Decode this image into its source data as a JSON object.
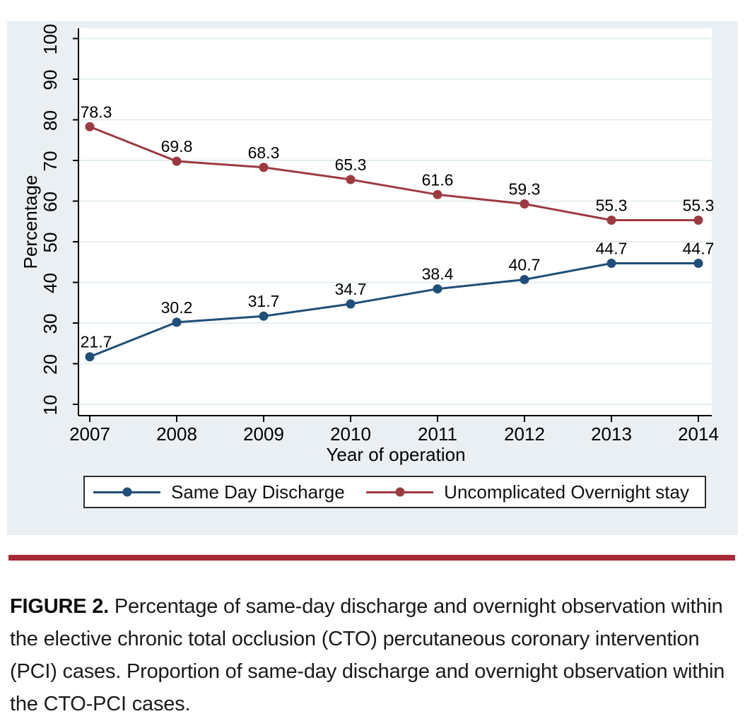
{
  "figure": {
    "caption_label": "FIGURE 2.",
    "caption_text": " Percentage of same-day discharge and overnight observation within the elective chronic total occlusion (CTO) percutaneous coronary intervention (PCI) cases. Proportion of same-day discharge and overnight observation within the CTO-PCI cases.",
    "rule_color": "#a72837"
  },
  "chart_data": {
    "type": "line",
    "x": [
      2007,
      2008,
      2009,
      2010,
      2011,
      2012,
      2013,
      2014
    ],
    "xlabel": "Year of operation",
    "ylabel": "Percentage",
    "ylim": [
      10,
      100
    ],
    "yticks": [
      10,
      20,
      30,
      40,
      50,
      60,
      70,
      80,
      90,
      100
    ],
    "grid": true,
    "background": "#e9eff2",
    "plot_background": "#ffffff",
    "gridline_color": "#dce9ef",
    "axis_color": "#000000",
    "legend_position": "bottom",
    "point_labels": true,
    "series": [
      {
        "name": "Same Day Discharge",
        "color": "#1f4e79",
        "values": [
          21.7,
          30.2,
          31.7,
          34.7,
          38.4,
          40.7,
          44.7,
          44.7
        ]
      },
      {
        "name": "Uncomplicated Overnight stay",
        "color": "#9d3a41",
        "values": [
          78.3,
          69.8,
          68.3,
          65.3,
          61.6,
          59.3,
          55.3,
          55.3
        ]
      }
    ]
  }
}
